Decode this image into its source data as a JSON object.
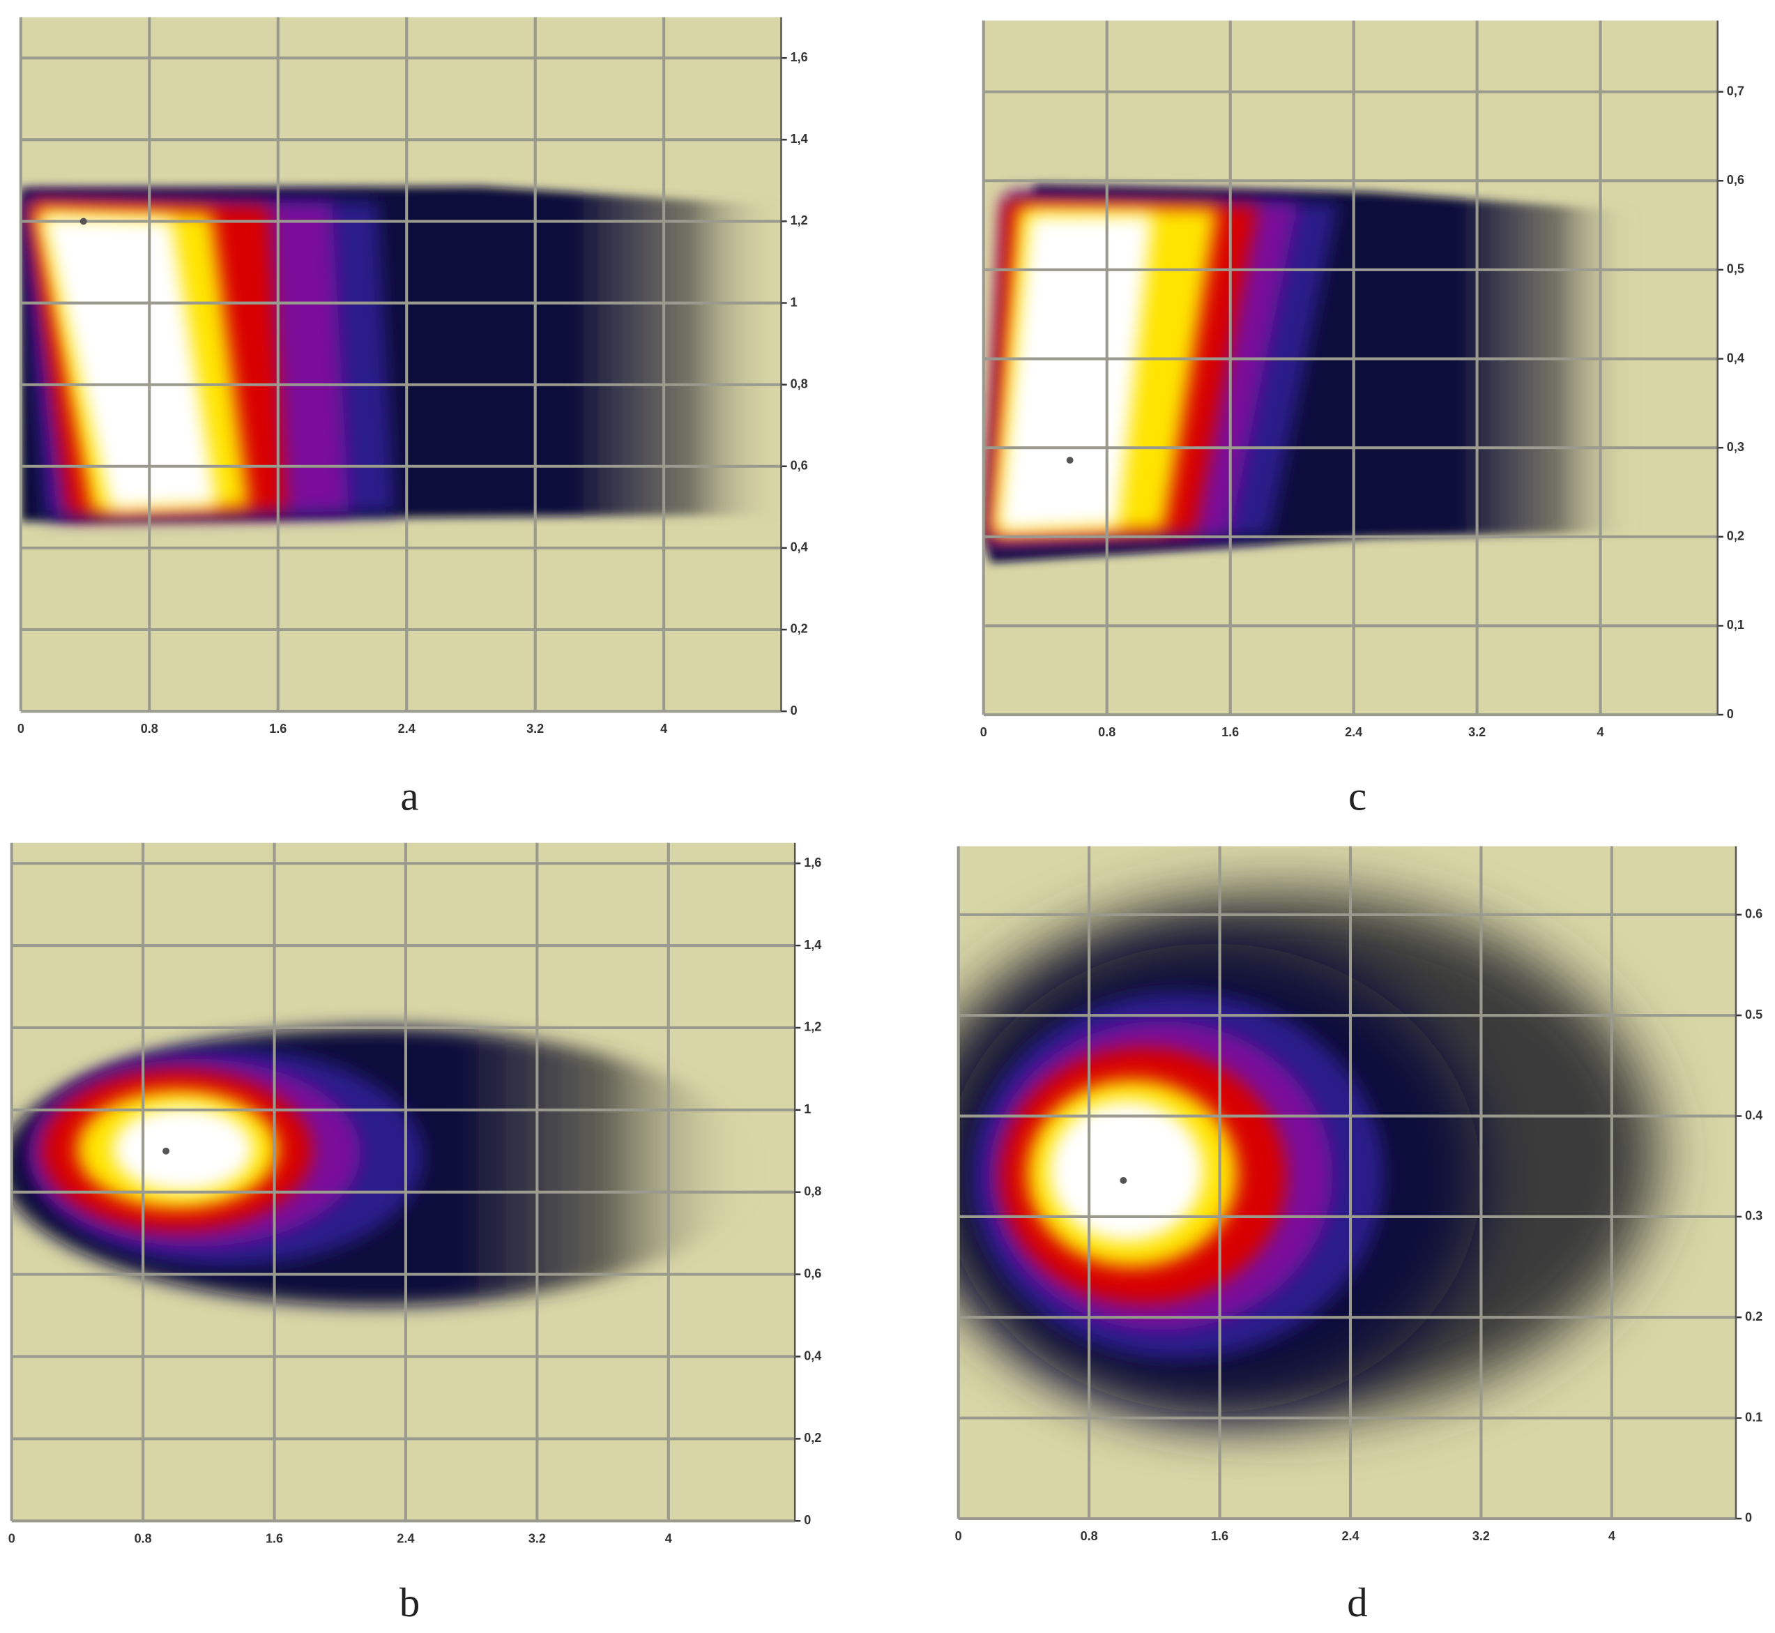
{
  "chart_data": [
    {
      "type": "heatmap",
      "label": "a",
      "xlim": [
        0,
        4.73
      ],
      "ylim": [
        0,
        1.7
      ],
      "xticks": [
        0,
        0.8,
        1.6,
        2.4,
        3.2,
        4
      ],
      "yticks": [
        0,
        {
          "value": 0.2,
          "label": "0,2"
        },
        {
          "value": 0.4,
          "label": "0,4"
        },
        {
          "value": 0.6,
          "label": "0,6"
        },
        {
          "value": 0.8,
          "label": "0,8"
        },
        1,
        {
          "value": 1.2,
          "label": "1,2"
        },
        {
          "value": 1.4,
          "label": "1,4"
        },
        {
          "value": 1.6,
          "label": "1,6"
        }
      ],
      "grid": true,
      "peak": {
        "x": 0.39,
        "y": 1.2
      }
    },
    {
      "type": "heatmap",
      "label": "b",
      "xlim": [
        0,
        4.77
      ],
      "ylim": [
        0,
        1.65
      ],
      "xticks": [
        0,
        0.8,
        1.6,
        2.4,
        3.2,
        4
      ],
      "yticks": [
        0,
        {
          "value": 0.2,
          "label": "0,2"
        },
        {
          "value": 0.4,
          "label": "0,4"
        },
        {
          "value": 0.6,
          "label": "0,6"
        },
        {
          "value": 0.8,
          "label": "0,8"
        },
        1,
        {
          "value": 1.2,
          "label": "1,2"
        },
        {
          "value": 1.4,
          "label": "1,4"
        },
        {
          "value": 1.6,
          "label": "1,6"
        }
      ],
      "grid": true,
      "peak": {
        "x": 0.94,
        "y": 0.9
      }
    },
    {
      "type": "heatmap",
      "label": "c",
      "xlim": [
        0,
        4.76
      ],
      "ylim": [
        0,
        0.78
      ],
      "xticks": [
        0,
        0.8,
        1.6,
        2.4,
        3.2,
        4
      ],
      "yticks": [
        0,
        {
          "value": 0.1,
          "label": "0,1"
        },
        {
          "value": 0.2,
          "label": "0,2"
        },
        {
          "value": 0.3,
          "label": "0,3"
        },
        {
          "value": 0.4,
          "label": "0,4"
        },
        {
          "value": 0.5,
          "label": "0,5"
        },
        {
          "value": 0.6,
          "label": "0,6"
        },
        {
          "value": 0.7,
          "label": "0,7"
        }
      ],
      "grid": true,
      "peak": {
        "x": 0.56,
        "y": 0.286
      }
    },
    {
      "type": "heatmap",
      "label": "d",
      "xlim": [
        0,
        4.76
      ],
      "ylim": [
        0,
        0.668
      ],
      "xticks": [
        0,
        0.8,
        1.6,
        2.4,
        3.2,
        4
      ],
      "yticks": [
        0,
        0.1,
        0.2,
        0.3,
        0.4,
        0.5,
        0.6
      ],
      "grid": true,
      "peak": {
        "x": 1.01,
        "y": 0.336
      }
    }
  ]
}
